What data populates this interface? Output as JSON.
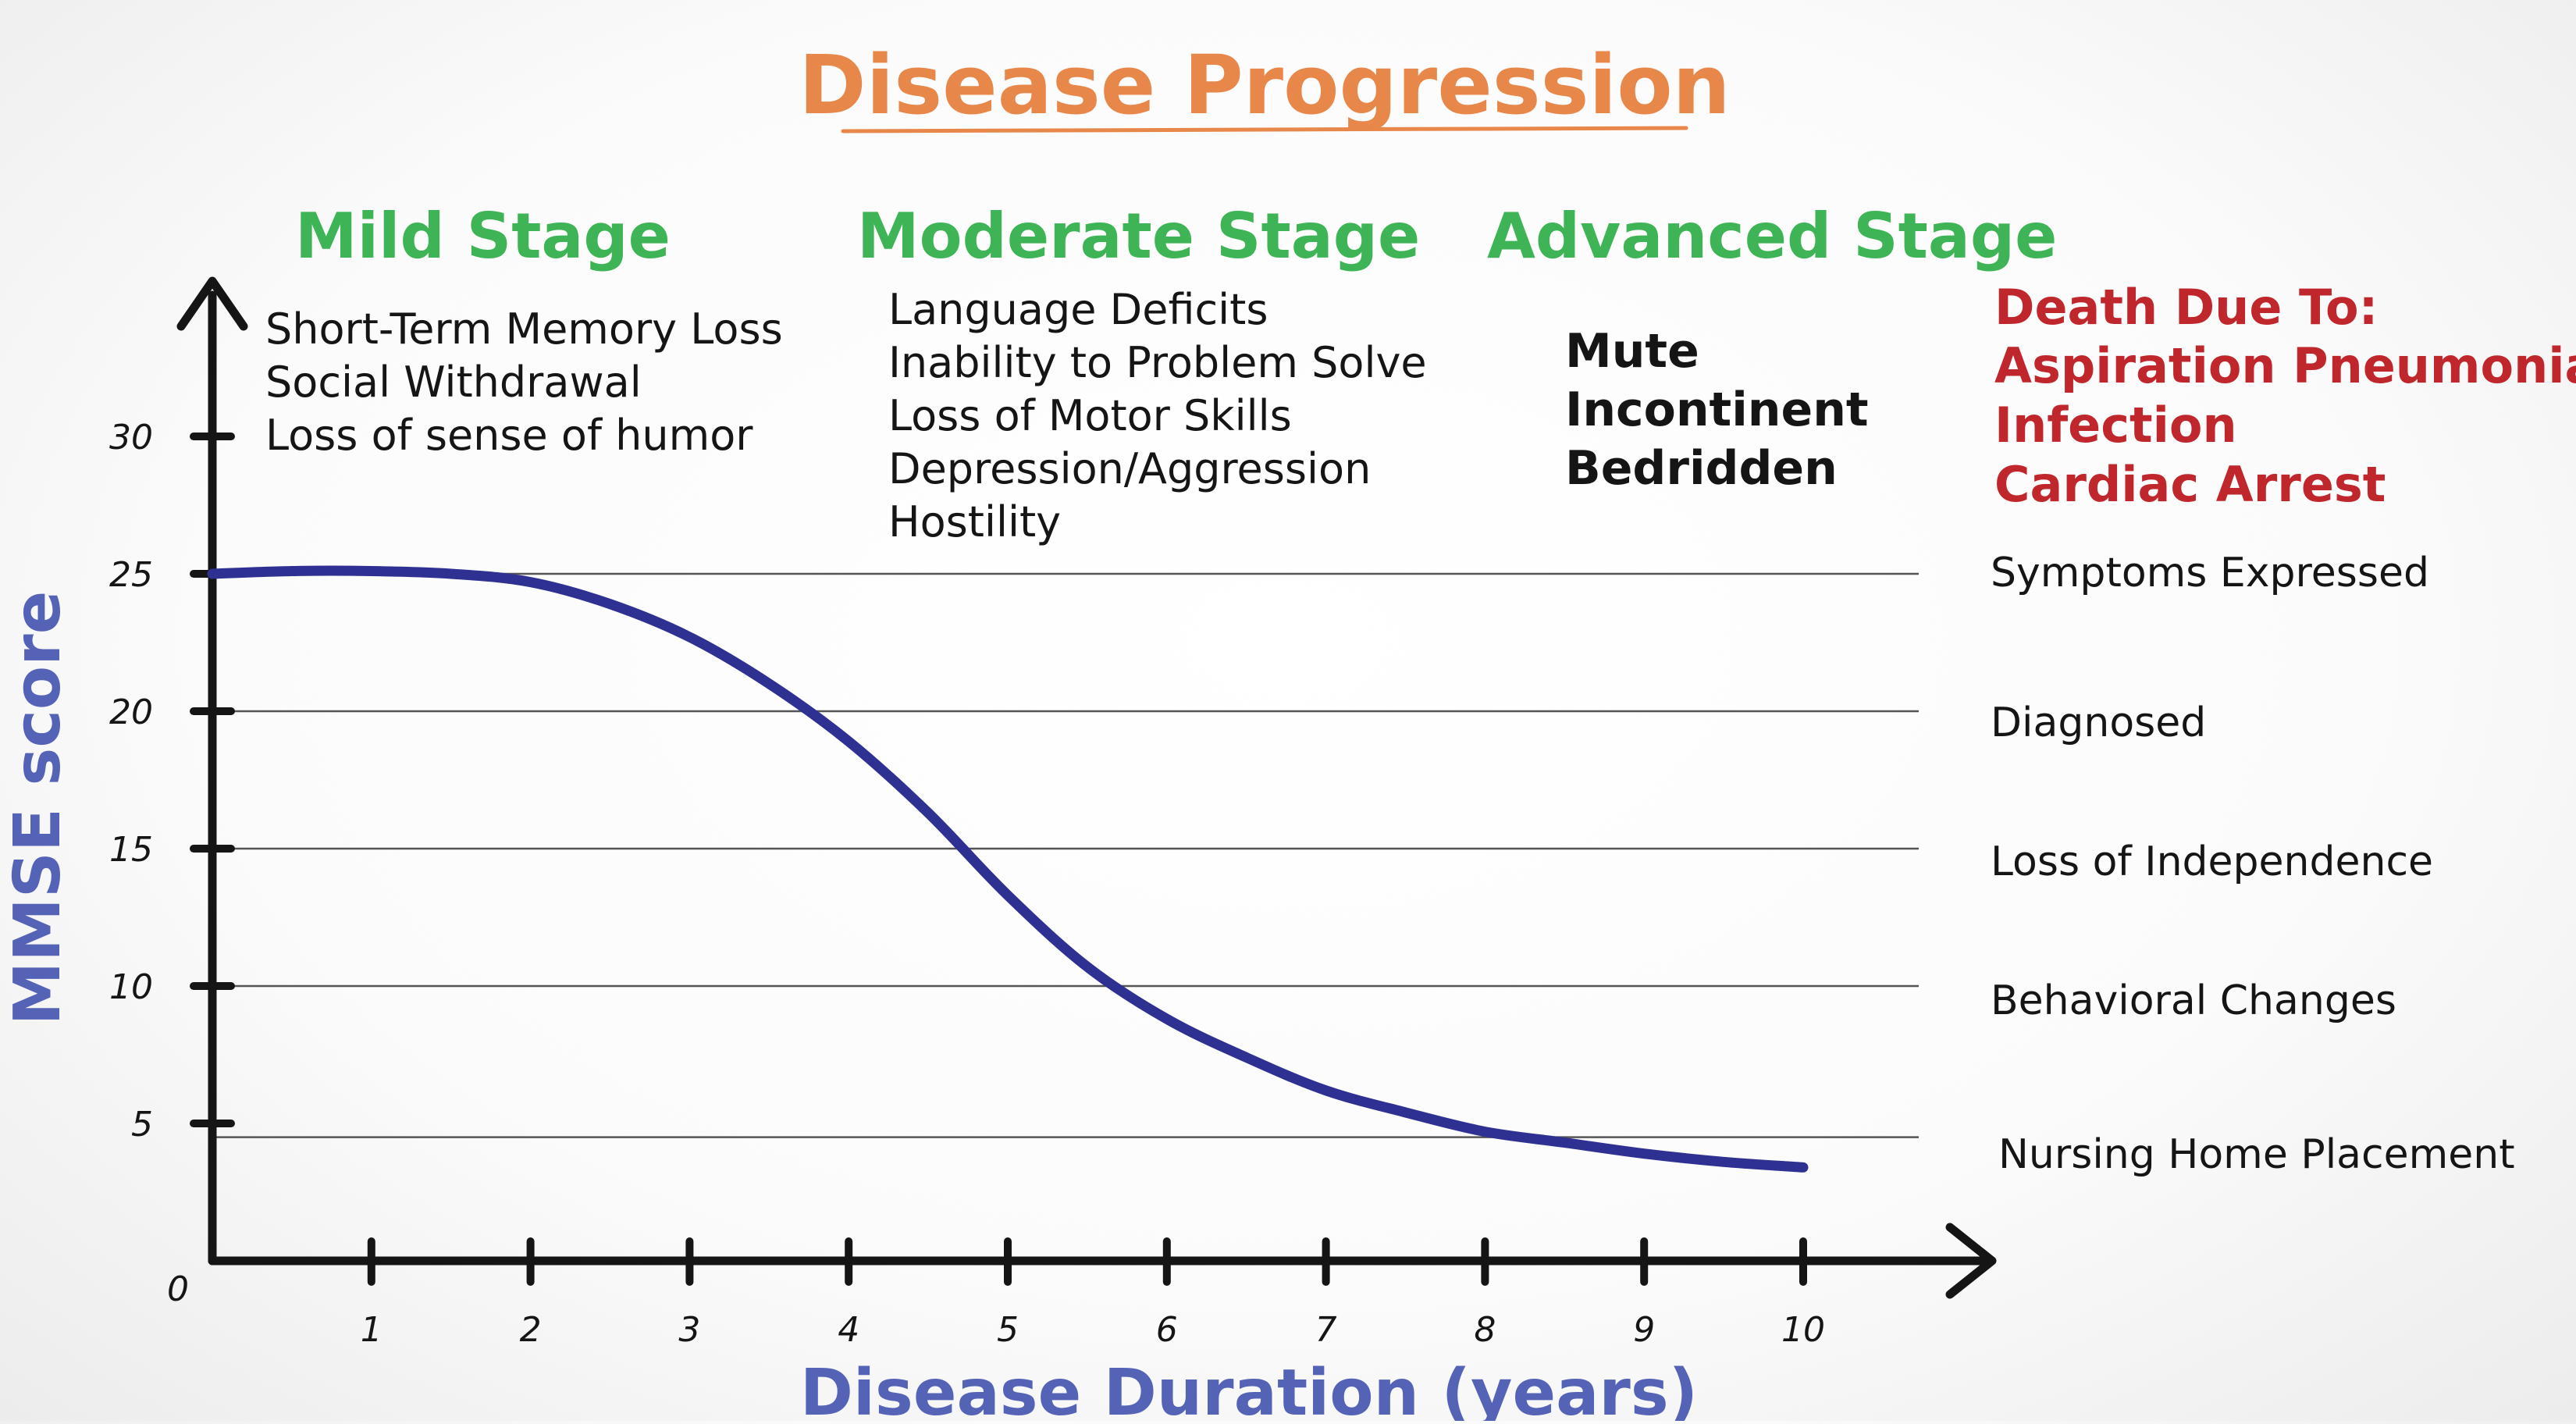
{
  "chart_data": {
    "type": "line",
    "title": "Disease Progression",
    "xlabel": "Disease Duration (years)",
    "ylabel": "MMSE score",
    "xlim": [
      0,
      10
    ],
    "ylim": [
      0,
      30
    ],
    "origin_label": "0",
    "x_ticks": [
      "1",
      "2",
      "3",
      "4",
      "5",
      "6",
      "7",
      "8",
      "9",
      "10"
    ],
    "y_ticks": [
      "5",
      "10",
      "15",
      "20",
      "25",
      "30"
    ],
    "series": [
      {
        "color": "#2f3192",
        "x": [
          0,
          0.5,
          1,
          1.5,
          2,
          2.5,
          3,
          3.5,
          4,
          4.5,
          5,
          5.5,
          6,
          6.5,
          7,
          7.5,
          8,
          8.5,
          9,
          9.5,
          10
        ],
        "y": [
          25,
          25.1,
          25.1,
          25.0,
          24.7,
          23.9,
          22.7,
          21.0,
          18.9,
          16.3,
          13.3,
          10.7,
          8.8,
          7.4,
          6.2,
          5.4,
          4.7,
          4.3,
          3.9,
          3.6,
          3.4
        ]
      }
    ],
    "milestones": [
      {
        "label": "Symptoms Expressed",
        "y": 25
      },
      {
        "label": "Diagnosed",
        "y": 20
      },
      {
        "label": "Loss of Independence",
        "y": 15
      },
      {
        "label": "Behavioral Changes",
        "y": 10
      },
      {
        "label": "Nursing Home Placement",
        "y": 4.5
      }
    ],
    "stages": [
      {
        "name": "Mild Stage",
        "symptoms": [
          "Short-Term Memory Loss",
          "Social Withdrawal",
          "Loss of sense of humor"
        ]
      },
      {
        "name": "Moderate Stage",
        "symptoms": [
          "Language Deficits",
          "Inability to Problem Solve",
          "Loss of Motor Skills",
          "Depression/Aggression",
          "Hostility"
        ]
      },
      {
        "name": "Advanced Stage",
        "symptoms": [
          "Mute",
          "Incontinent",
          "Bedridden"
        ]
      }
    ],
    "death": {
      "heading": "Death Due To:",
      "causes": [
        "Aspiration Pneumonia",
        "Infection",
        "Cardiac Arrest"
      ]
    },
    "grid": true,
    "colors": {
      "title": "#e8874a",
      "stage": "#3fb457",
      "death": "#c0272d",
      "axis_title": "#5563b6",
      "curve": "#2f3192",
      "axis": "#151515",
      "gridline": "#555555"
    }
  }
}
